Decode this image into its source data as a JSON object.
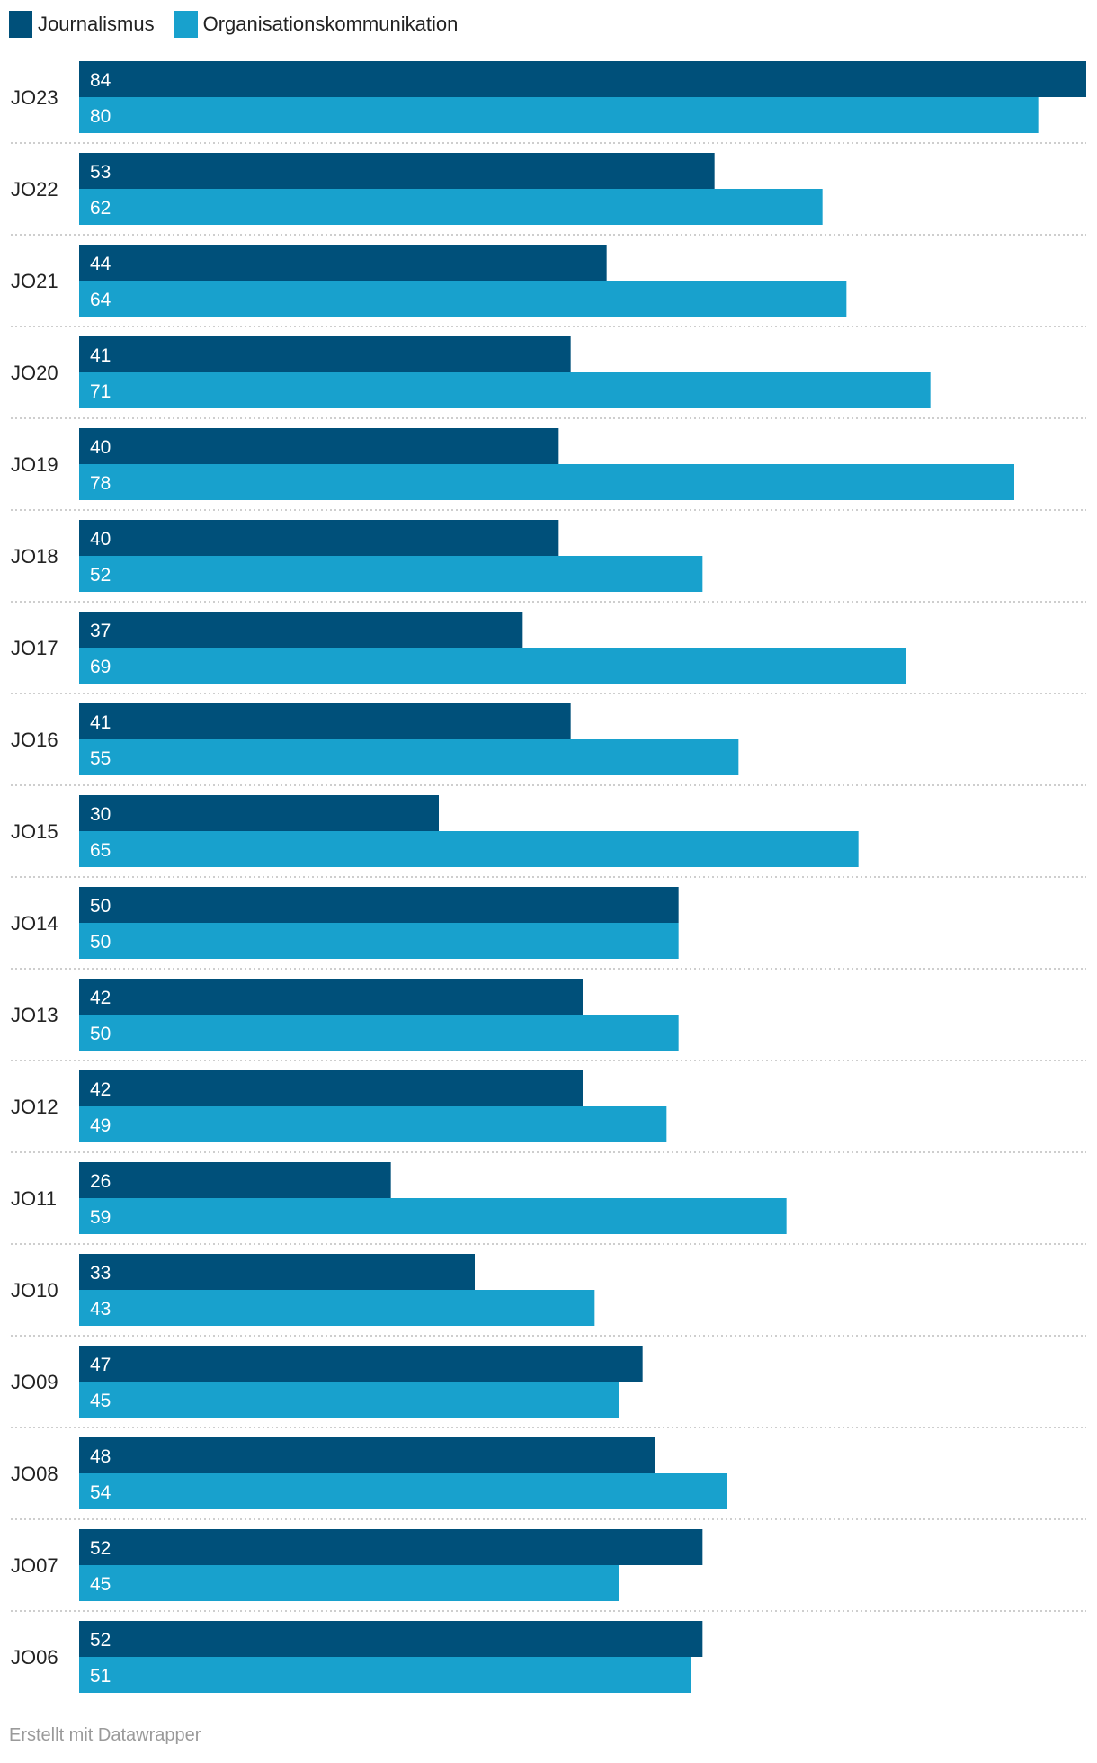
{
  "chart_data": {
    "type": "bar",
    "orientation": "horizontal",
    "categories": [
      "JO23",
      "JO22",
      "JO21",
      "JO20",
      "JO19",
      "JO18",
      "JO17",
      "JO16",
      "JO15",
      "JO14",
      "JO13",
      "JO12",
      "JO11",
      "JO10",
      "JO09",
      "JO08",
      "JO07",
      "JO06"
    ],
    "series": [
      {
        "name": "Journalismus",
        "color": "#00507a",
        "values": [
          84,
          53,
          44,
          41,
          40,
          40,
          37,
          41,
          30,
          50,
          42,
          42,
          26,
          33,
          47,
          48,
          52,
          52
        ]
      },
      {
        "name": "Organisationskommunikation",
        "color": "#18a1cd",
        "values": [
          80,
          62,
          64,
          71,
          78,
          52,
          69,
          55,
          65,
          50,
          50,
          49,
          59,
          43,
          45,
          54,
          45,
          51
        ]
      }
    ],
    "xlim": [
      0,
      84
    ],
    "legend_position": "top-left",
    "grid": false
  },
  "footer": {
    "credit": "Erstellt mit Datawrapper"
  }
}
